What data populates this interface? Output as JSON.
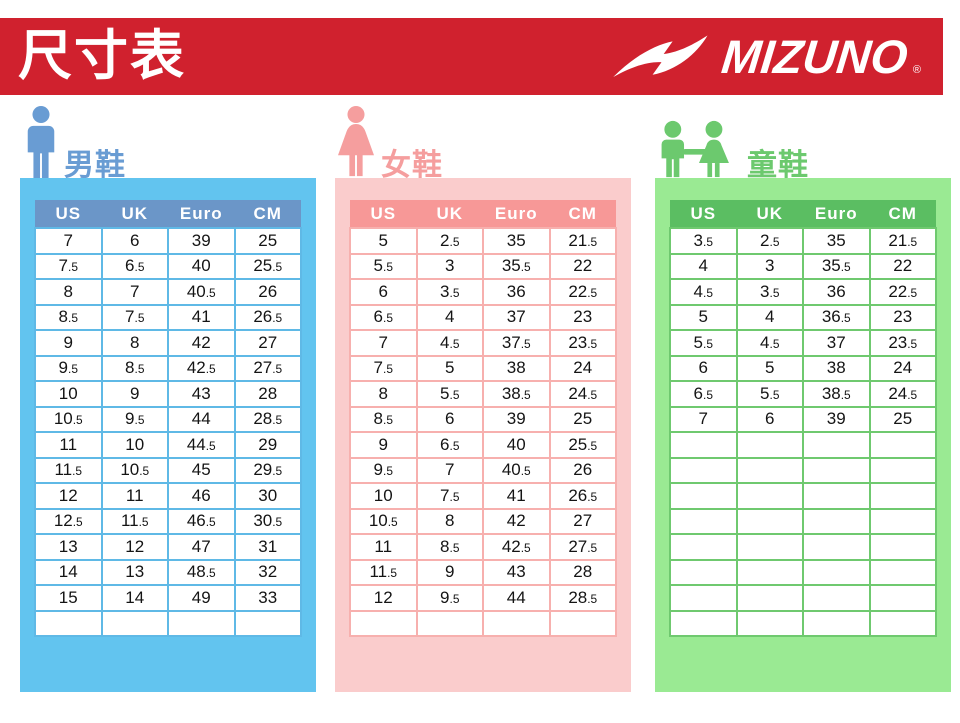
{
  "header": {
    "title": "尺寸表",
    "brand": "MIZUNO",
    "brand_registered": "®",
    "banner_color": "#D0212E"
  },
  "tables": [
    {
      "id": "men",
      "label": "男鞋",
      "icon": "man-icon",
      "theme": {
        "container": "#62C4EF",
        "header_bg": "#6B96C8",
        "accent": "#699CD3",
        "grid": "#5FB9E6"
      },
      "columns": [
        "US",
        "UK",
        "Euro",
        "CM"
      ],
      "rows": [
        [
          "7",
          "6",
          "39",
          "25"
        ],
        [
          "7.5",
          "6.5",
          "40",
          "25.5"
        ],
        [
          "8",
          "7",
          "40.5",
          "26"
        ],
        [
          "8.5",
          "7.5",
          "41",
          "26.5"
        ],
        [
          "9",
          "8",
          "42",
          "27"
        ],
        [
          "9.5",
          "8.5",
          "42.5",
          "27.5"
        ],
        [
          "10",
          "9",
          "43",
          "28"
        ],
        [
          "10.5",
          "9.5",
          "44",
          "28.5"
        ],
        [
          "11",
          "10",
          "44.5",
          "29"
        ],
        [
          "11.5",
          "10.5",
          "45",
          "29.5"
        ],
        [
          "12",
          "11",
          "46",
          "30"
        ],
        [
          "12.5",
          "11.5",
          "46.5",
          "30.5"
        ],
        [
          "13",
          "12",
          "47",
          "31"
        ],
        [
          "14",
          "13",
          "48.5",
          "32"
        ],
        [
          "15",
          "14",
          "49",
          "33"
        ]
      ],
      "empty_rows": 1
    },
    {
      "id": "women",
      "label": "女鞋",
      "icon": "woman-icon",
      "theme": {
        "container": "#FACCCC",
        "header_bg": "#F79897",
        "accent": "#F59E9E",
        "grid": "#F7B0AE"
      },
      "columns": [
        "US",
        "UK",
        "Euro",
        "CM"
      ],
      "rows": [
        [
          "5",
          "2.5",
          "35",
          "21.5"
        ],
        [
          "5.5",
          "3",
          "35.5",
          "22"
        ],
        [
          "6",
          "3.5",
          "36",
          "22.5"
        ],
        [
          "6.5",
          "4",
          "37",
          "23"
        ],
        [
          "7",
          "4.5",
          "37.5",
          "23.5"
        ],
        [
          "7.5",
          "5",
          "38",
          "24"
        ],
        [
          "8",
          "5.5",
          "38.5",
          "24.5"
        ],
        [
          "8.5",
          "6",
          "39",
          "25"
        ],
        [
          "9",
          "6.5",
          "40",
          "25.5"
        ],
        [
          "9.5",
          "7",
          "40.5",
          "26"
        ],
        [
          "10",
          "7.5",
          "41",
          "26.5"
        ],
        [
          "10.5",
          "8",
          "42",
          "27"
        ],
        [
          "11",
          "8.5",
          "42.5",
          "27.5"
        ],
        [
          "11.5",
          "9",
          "43",
          "28"
        ],
        [
          "12",
          "9.5",
          "44",
          "28.5"
        ]
      ],
      "empty_rows": 1
    },
    {
      "id": "kids",
      "label": "童鞋",
      "icon": "children-icon",
      "theme": {
        "container": "#9AEA93",
        "header_bg": "#5BBE62",
        "accent": "#6CC96E",
        "grid": "#6FC96F"
      },
      "columns": [
        "US",
        "UK",
        "Euro",
        "CM"
      ],
      "rows": [
        [
          "3.5",
          "2.5",
          "35",
          "21.5"
        ],
        [
          "4",
          "3",
          "35.5",
          "22"
        ],
        [
          "4.5",
          "3.5",
          "36",
          "22.5"
        ],
        [
          "5",
          "4",
          "36.5",
          "23"
        ],
        [
          "5.5",
          "4.5",
          "37",
          "23.5"
        ],
        [
          "6",
          "5",
          "38",
          "24"
        ],
        [
          "6.5",
          "5.5",
          "38.5",
          "24.5"
        ],
        [
          "7",
          "6",
          "39",
          "25"
        ]
      ],
      "empty_rows": 8
    }
  ]
}
